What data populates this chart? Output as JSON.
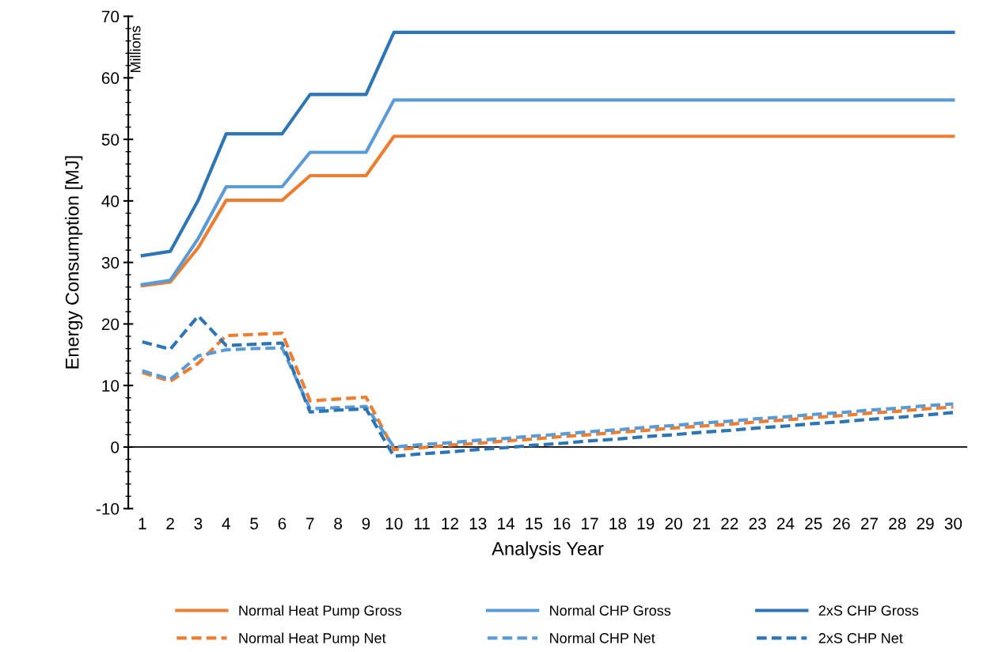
{
  "chart_data": {
    "type": "line",
    "xlabel": "Analysis Year",
    "ylabel": "Energy Consumption [MJ]",
    "annotations": [
      "Millions"
    ],
    "categories": [
      "1",
      "2",
      "3",
      "4",
      "5",
      "6",
      "7",
      "8",
      "9",
      "10",
      "11",
      "12",
      "13",
      "14",
      "15",
      "16",
      "17",
      "18",
      "19",
      "20",
      "21",
      "22",
      "23",
      "24",
      "25",
      "26",
      "27",
      "28",
      "29",
      "30"
    ],
    "ylim": [
      -10,
      70
    ],
    "yticks": [
      -10,
      0,
      10,
      20,
      30,
      40,
      50,
      60,
      70
    ],
    "grid": false,
    "legend": "bottom",
    "marker": "none",
    "ref_lines": [
      {
        "axis": "y",
        "value": 0,
        "label": null,
        "color": "#000000"
      }
    ],
    "series": [
      {
        "name": "Normal Heat Pump Gross",
        "color": "#ed7d31",
        "line_style": "solid",
        "values": [
          26.2,
          26.8,
          32.4,
          40.1,
          40.1,
          40.1,
          44.1,
          44.1,
          44.1,
          50.5,
          50.5,
          50.5,
          50.5,
          50.5,
          50.5,
          50.5,
          50.5,
          50.5,
          50.5,
          50.5,
          50.5,
          50.5,
          50.5,
          50.5,
          50.5,
          50.5,
          50.5,
          50.5,
          50.5,
          50.5
        ]
      },
      {
        "name": "Normal CHP Gross",
        "color": "#5b9bd5",
        "line_style": "solid",
        "values": [
          26.4,
          27.1,
          33.9,
          42.3,
          42.3,
          42.3,
          47.9,
          47.9,
          47.9,
          56.4,
          56.4,
          56.4,
          56.4,
          56.4,
          56.4,
          56.4,
          56.4,
          56.4,
          56.4,
          56.4,
          56.4,
          56.4,
          56.4,
          56.4,
          56.4,
          56.4,
          56.4,
          56.4,
          56.4,
          56.4
        ]
      },
      {
        "name": "2xS CHP Gross",
        "color": "#2e75b6",
        "line_style": "solid",
        "values": [
          31.1,
          31.8,
          40.1,
          50.9,
          50.9,
          50.9,
          57.3,
          57.3,
          57.3,
          67.4,
          67.4,
          67.4,
          67.4,
          67.4,
          67.4,
          67.4,
          67.4,
          67.4,
          67.4,
          67.4,
          67.4,
          67.4,
          67.4,
          67.4,
          67.4,
          67.4,
          67.4,
          67.4,
          67.4,
          67.4
        ]
      },
      {
        "name": "Normal Heat Pump Net",
        "color": "#ed7d31",
        "line_style": "dashed",
        "values": [
          12.1,
          10.7,
          13.6,
          18.1,
          18.3,
          18.5,
          7.5,
          7.8,
          8.1,
          -0.4,
          -0.1,
          0.3,
          0.6,
          1.0,
          1.3,
          1.7,
          2.0,
          2.4,
          2.7,
          3.1,
          3.4,
          3.7,
          4.1,
          4.4,
          4.8,
          5.1,
          5.5,
          5.8,
          6.2,
          6.5
        ]
      },
      {
        "name": "Normal CHP Net",
        "color": "#5b9bd5",
        "line_style": "dashed",
        "values": [
          12.4,
          11.0,
          14.8,
          15.8,
          16.0,
          16.1,
          6.2,
          6.4,
          6.6,
          0.0,
          0.4,
          0.7,
          1.1,
          1.4,
          1.8,
          2.1,
          2.5,
          2.8,
          3.2,
          3.5,
          3.9,
          4.2,
          4.6,
          4.9,
          5.3,
          5.6,
          6.0,
          6.3,
          6.7,
          7.0
        ]
      },
      {
        "name": "2xS CHP Net",
        "color": "#2e75b6",
        "line_style": "dashed",
        "values": [
          17.1,
          15.9,
          21.3,
          16.5,
          16.7,
          16.9,
          5.7,
          6.0,
          6.2,
          -1.5,
          -1.1,
          -0.8,
          -0.4,
          -0.1,
          0.3,
          0.6,
          1.0,
          1.3,
          1.7,
          2.0,
          2.4,
          2.7,
          3.1,
          3.4,
          3.8,
          4.1,
          4.5,
          4.8,
          5.2,
          5.6
        ]
      }
    ]
  }
}
